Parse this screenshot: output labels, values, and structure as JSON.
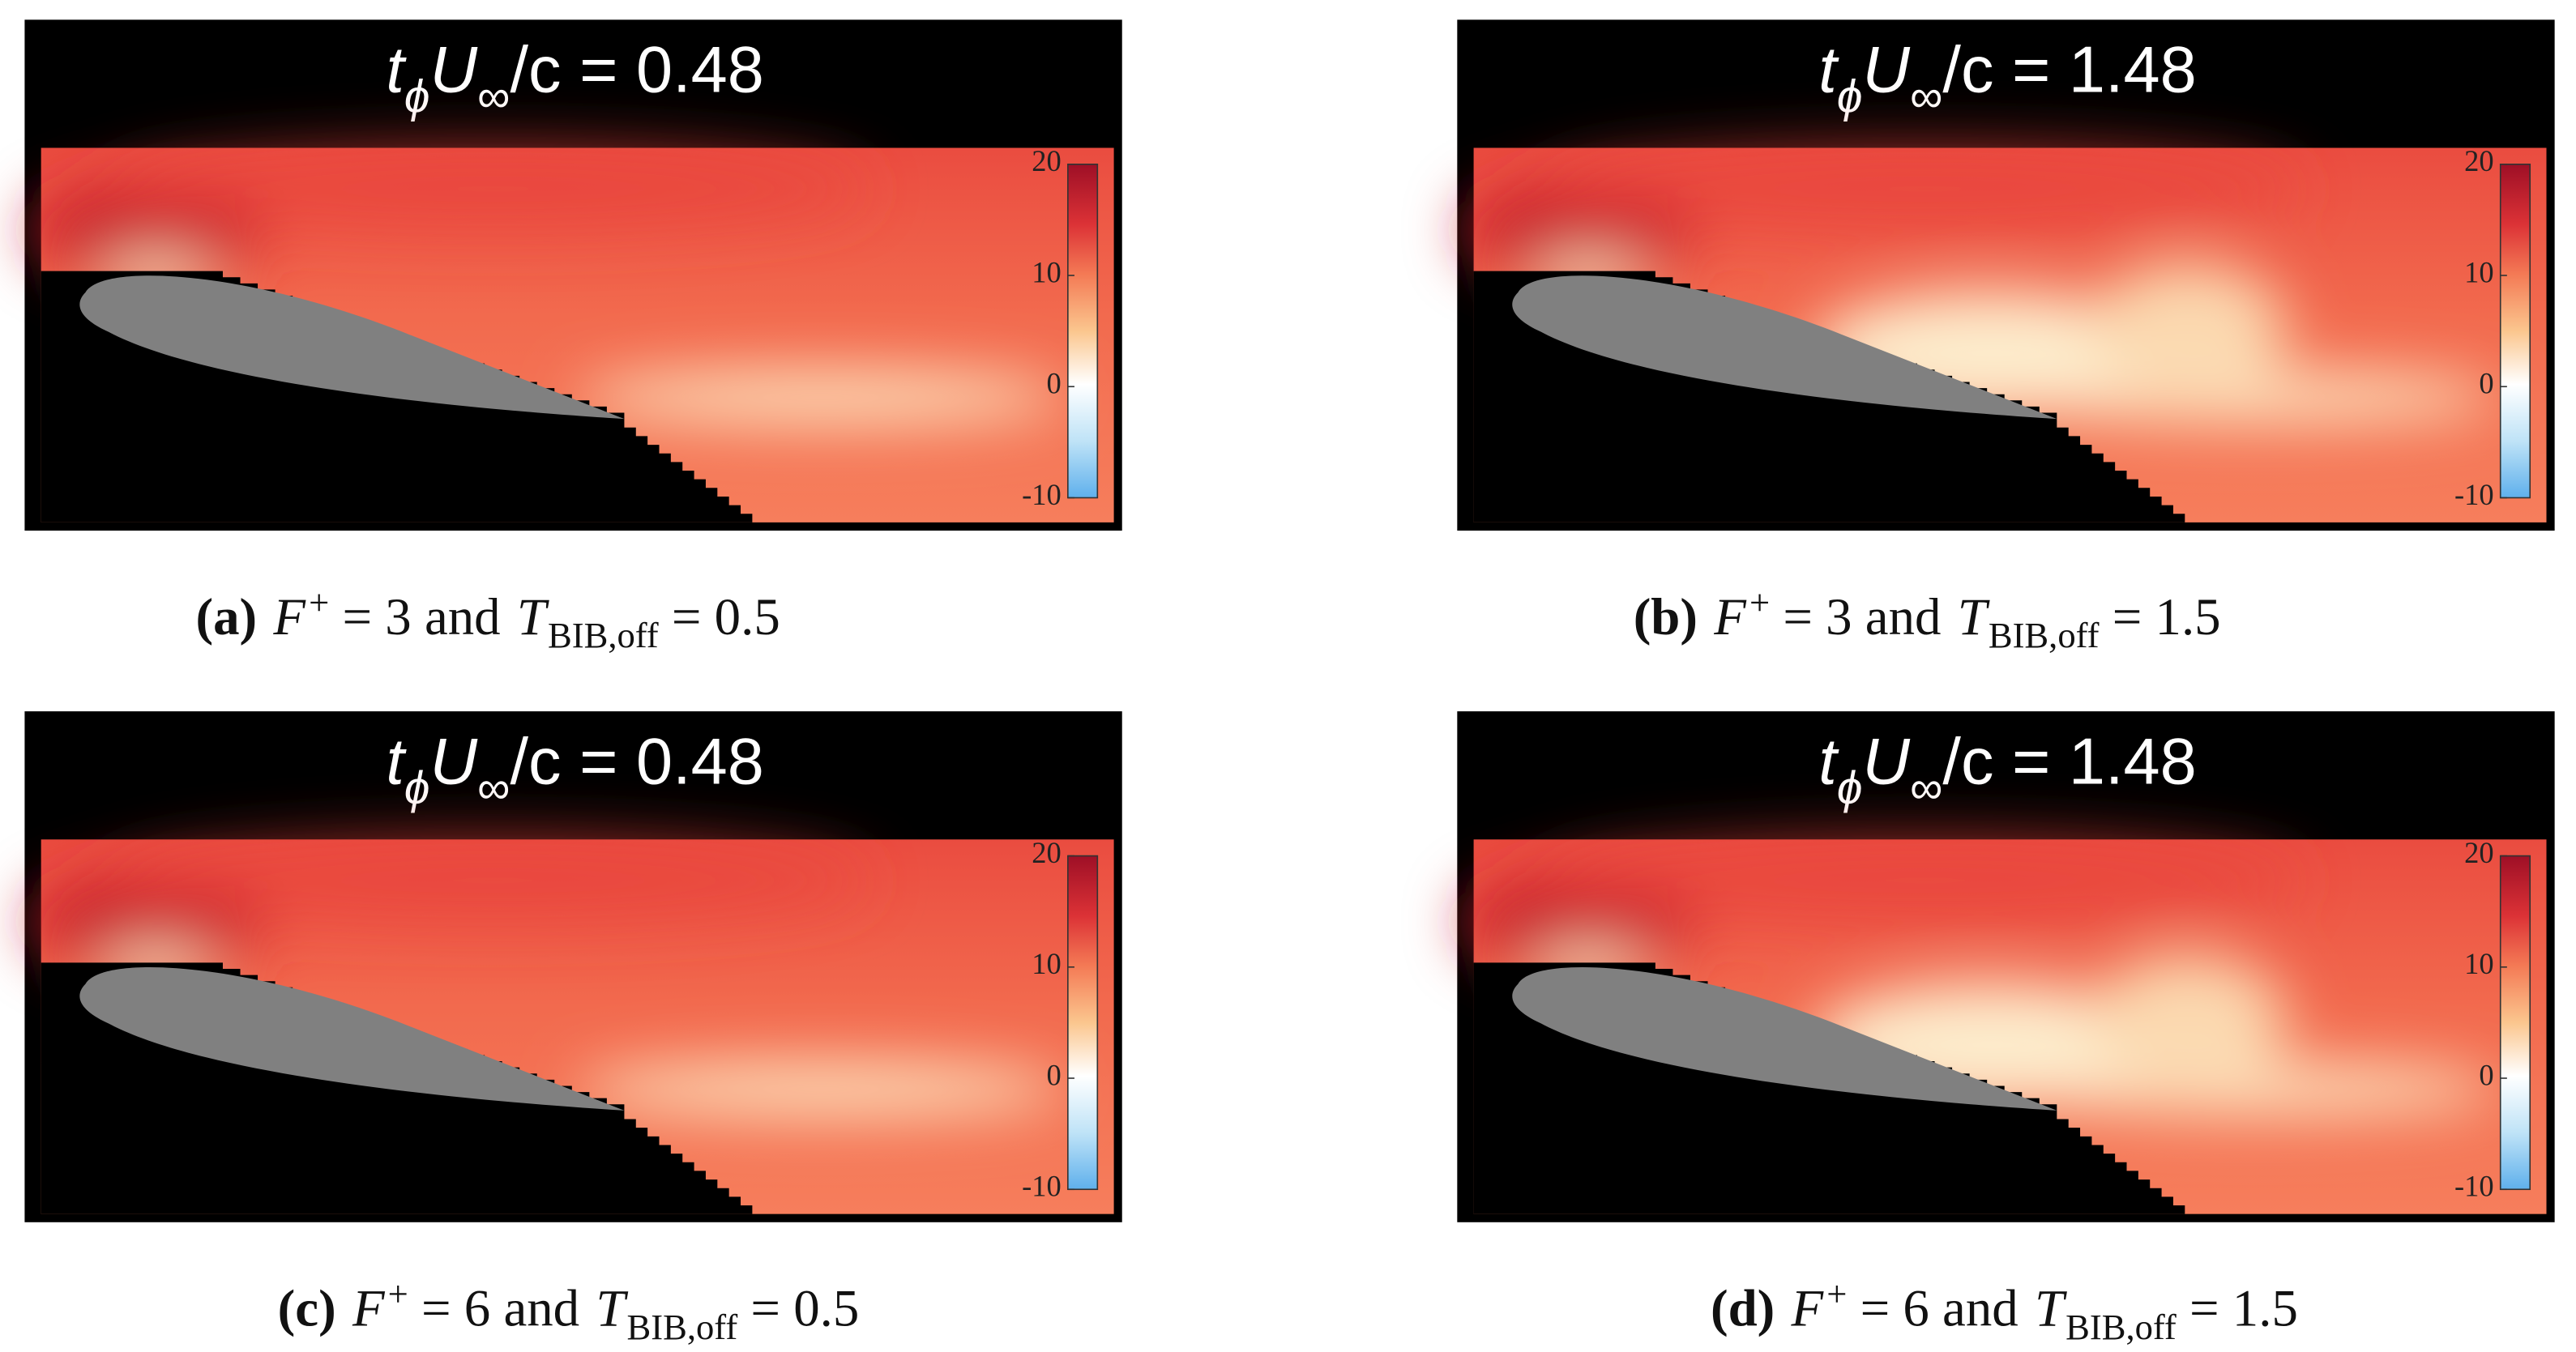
{
  "panels": [
    {
      "title": {
        "t": "t",
        "phi": "ϕ",
        "U": "U",
        "inf": "∞",
        "rest": "/c = 0.48"
      },
      "colorbar": {
        "lim": [
          -10,
          20
        ],
        "ticks": [
          20,
          10,
          0,
          -10
        ]
      },
      "caption": {
        "label": "(a)",
        "F": "F",
        "plus": "+",
        "mid": "= 3 and",
        "T": "T",
        "sub": "BIB,off",
        "end": "= 0.5"
      }
    },
    {
      "title": {
        "t": "t",
        "phi": "ϕ",
        "U": "U",
        "inf": "∞",
        "rest": "/c = 1.48"
      },
      "colorbar": {
        "lim": [
          -10,
          20
        ],
        "ticks": [
          20,
          10,
          0,
          -10
        ]
      },
      "caption": {
        "label": "(b)",
        "F": "F",
        "plus": "+",
        "mid": "= 3 and",
        "T": "T",
        "sub": "BIB,off",
        "end": "= 1.5"
      }
    },
    {
      "title": {
        "t": "t",
        "phi": "ϕ",
        "U": "U",
        "inf": "∞",
        "rest": "/c = 0.48"
      },
      "colorbar": {
        "lim": [
          -10,
          20
        ],
        "ticks": [
          20,
          10,
          0,
          -10
        ]
      },
      "caption": {
        "label": "(c)",
        "F": "F",
        "plus": "+",
        "mid": "= 6 and",
        "T": "T",
        "sub": "BIB,off",
        "end": "= 0.5"
      }
    },
    {
      "title": {
        "t": "t",
        "phi": "ϕ",
        "U": "U",
        "inf": "∞",
        "rest": "/c = 1.48"
      },
      "colorbar": {
        "lim": [
          -10,
          20
        ],
        "ticks": [
          20,
          10,
          0,
          -10
        ]
      },
      "caption": {
        "label": "(d)",
        "F": "F",
        "plus": "+",
        "mid": "= 6 and",
        "T": "T",
        "sub": "BIB,off",
        "end": "= 1.5"
      }
    }
  ]
}
